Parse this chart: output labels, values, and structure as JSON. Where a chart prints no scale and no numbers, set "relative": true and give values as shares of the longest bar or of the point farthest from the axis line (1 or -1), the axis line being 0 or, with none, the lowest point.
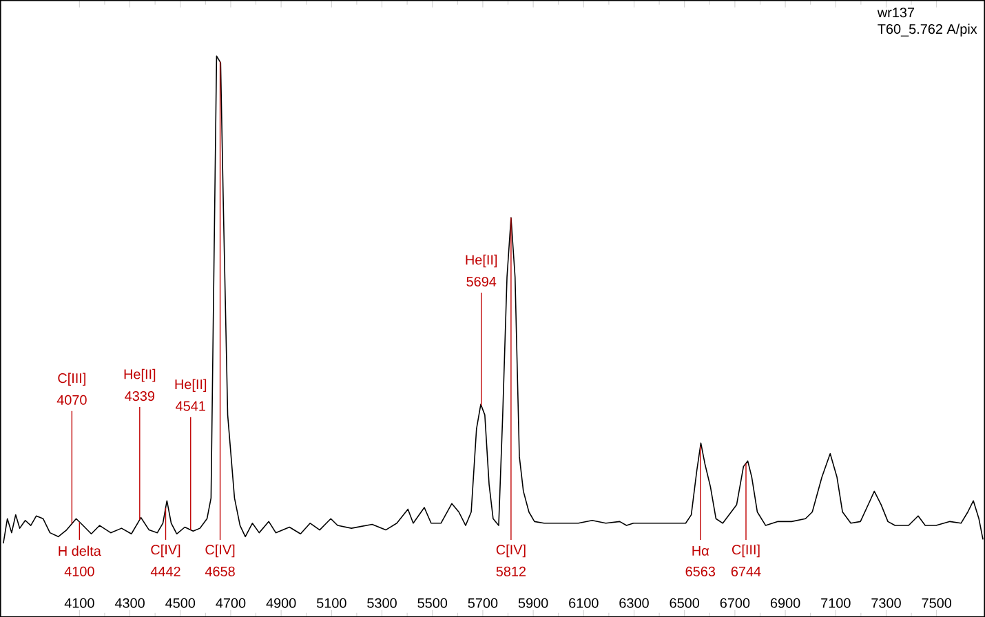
{
  "chart_data": {
    "type": "line",
    "title": "wr137",
    "subtitle": "T60_5.762 A/pix",
    "relative": true,
    "grid": false,
    "marker": "none",
    "line_style": "solid",
    "tick_labels": "x",
    "xlim": [
      3787,
      7690
    ],
    "xticks": [
      4100,
      4300,
      4500,
      4700,
      4900,
      5100,
      5300,
      5500,
      5700,
      5900,
      6100,
      6300,
      6500,
      6700,
      6900,
      7100,
      7300,
      7500
    ],
    "x": [
      3798,
      3814,
      3831,
      3847,
      3863,
      3885,
      3907,
      3929,
      3956,
      3983,
      4016,
      4049,
      4087,
      4114,
      4147,
      4180,
      4224,
      4267,
      4306,
      4344,
      4376,
      4409,
      4431,
      4447,
      4464,
      4486,
      4518,
      4551,
      4578,
      4606,
      4622,
      4633,
      4644,
      4660,
      4671,
      4688,
      4715,
      4737,
      4758,
      4786,
      4813,
      4851,
      4879,
      4933,
      4977,
      5015,
      5053,
      5097,
      5124,
      5179,
      5261,
      5315,
      5359,
      5403,
      5424,
      5468,
      5495,
      5534,
      5577,
      5605,
      5632,
      5654,
      5675,
      5692,
      5708,
      5725,
      5741,
      5763,
      5779,
      5796,
      5812,
      5828,
      5845,
      5861,
      5883,
      5905,
      5943,
      6079,
      6134,
      6188,
      6243,
      6270,
      6298,
      6407,
      6505,
      6527,
      6549,
      6565,
      6581,
      6603,
      6625,
      6652,
      6707,
      6734,
      6751,
      6767,
      6789,
      6822,
      6871,
      6925,
      6980,
      7007,
      7045,
      7078,
      7105,
      7127,
      7160,
      7198,
      7236,
      7253,
      7280,
      7307,
      7335,
      7389,
      7427,
      7455,
      7498,
      7553,
      7597,
      7624,
      7646,
      7668,
      7684
    ],
    "series": [
      {
        "color": "#000000",
        "values": [
          0.131,
          0.175,
          0.15,
          0.182,
          0.158,
          0.172,
          0.163,
          0.18,
          0.175,
          0.15,
          0.143,
          0.155,
          0.175,
          0.163,
          0.148,
          0.163,
          0.15,
          0.158,
          0.148,
          0.177,
          0.155,
          0.15,
          0.167,
          0.207,
          0.167,
          0.148,
          0.16,
          0.153,
          0.158,
          0.175,
          0.212,
          0.606,
          1.0,
          0.988,
          0.729,
          0.36,
          0.212,
          0.163,
          0.143,
          0.167,
          0.15,
          0.17,
          0.15,
          0.16,
          0.148,
          0.167,
          0.155,
          0.175,
          0.163,
          0.158,
          0.165,
          0.155,
          0.167,
          0.192,
          0.167,
          0.195,
          0.167,
          0.167,
          0.202,
          0.187,
          0.163,
          0.187,
          0.335,
          0.379,
          0.36,
          0.236,
          0.175,
          0.163,
          0.36,
          0.606,
          0.712,
          0.606,
          0.286,
          0.224,
          0.187,
          0.17,
          0.167,
          0.167,
          0.172,
          0.167,
          0.17,
          0.163,
          0.167,
          0.167,
          0.167,
          0.182,
          0.261,
          0.31,
          0.273,
          0.232,
          0.175,
          0.167,
          0.2,
          0.268,
          0.278,
          0.249,
          0.187,
          0.163,
          0.17,
          0.17,
          0.175,
          0.187,
          0.249,
          0.291,
          0.249,
          0.187,
          0.167,
          0.17,
          0.207,
          0.224,
          0.2,
          0.17,
          0.163,
          0.163,
          0.18,
          0.163,
          0.163,
          0.17,
          0.167,
          0.187,
          0.207,
          0.175,
          0.138
        ]
      }
    ],
    "annotations": [
      "C[III]",
      {
        "text": "4070",
        "x": 4070,
        "y": 0.166
      },
      {
        "text": "H delta",
        "x": 4100,
        "y": 0.169
      },
      "4100",
      "He[II]",
      {
        "text": "4339",
        "x": 4339,
        "y": 0.173
      },
      {
        "text": "C[IV]",
        "x": 4442,
        "y": 0.194
      },
      "4442",
      "He[II]",
      {
        "text": "4541",
        "x": 4541,
        "y": 0.155
      },
      {
        "text": "C[IV]",
        "x": 4658,
        "y": 0.99
      },
      "4658",
      "He[II]",
      {
        "text": "5694",
        "x": 5694,
        "y": 0.377
      },
      {
        "text": "C[IV]",
        "x": 5812,
        "y": 0.712
      },
      "5812",
      {
        "text": "Hα",
        "x": 6563,
        "y": 0.304
      },
      "6563",
      {
        "text": "C[III]",
        "x": 6744,
        "y": 0.274
      },
      "6744"
    ]
  }
}
